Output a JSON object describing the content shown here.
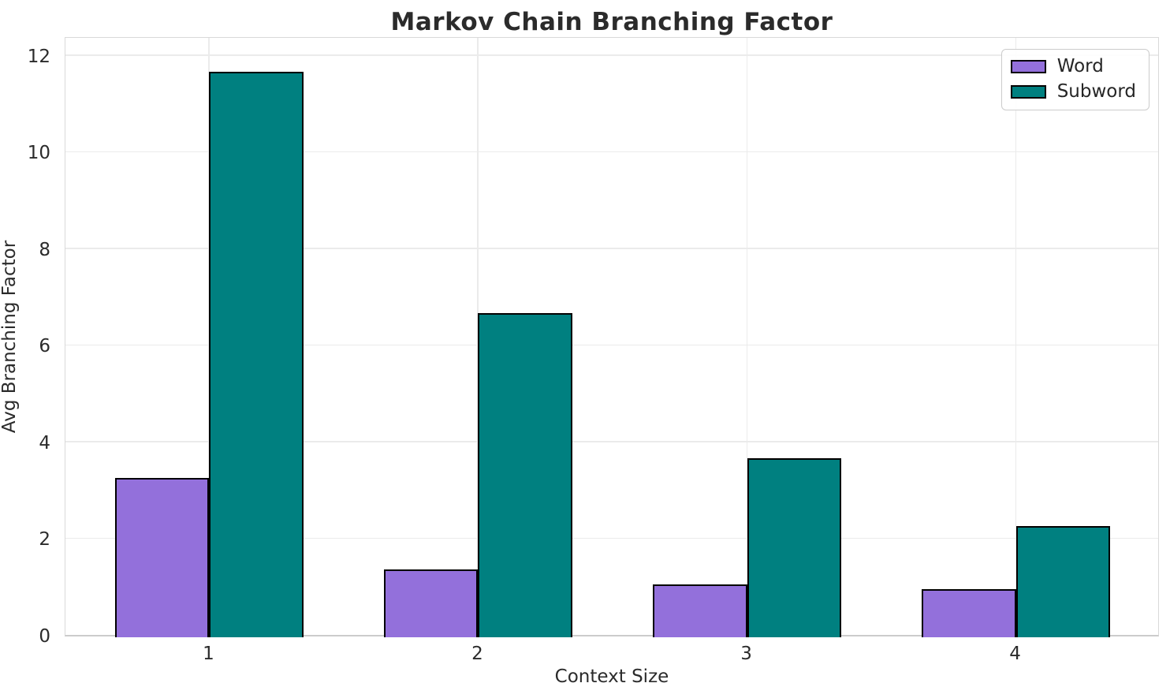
{
  "chart_data": {
    "type": "bar",
    "title": "Markov Chain Branching Factor",
    "xlabel": "Context Size",
    "ylabel": "Avg Branching Factor",
    "categories": [
      "1",
      "2",
      "3",
      "4"
    ],
    "series": [
      {
        "name": "Word",
        "color": "#9370db",
        "values": [
          3.3,
          1.4,
          1.1,
          1.0
        ]
      },
      {
        "name": "Subword",
        "color": "#008080",
        "values": [
          11.7,
          6.7,
          3.7,
          2.3
        ]
      }
    ],
    "y_ticks": [
      0,
      2,
      4,
      6,
      8,
      10,
      12
    ],
    "ylim": [
      0,
      12.4
    ],
    "xlim": [
      0.465,
      4.535
    ],
    "bar_width": 0.35,
    "bar_edge_color": "#000000",
    "grid": true,
    "gridline_color": "#ebebeb",
    "legend_position": "upper right",
    "background_color": "#ffffff",
    "text_color": "#2b2b2b"
  }
}
